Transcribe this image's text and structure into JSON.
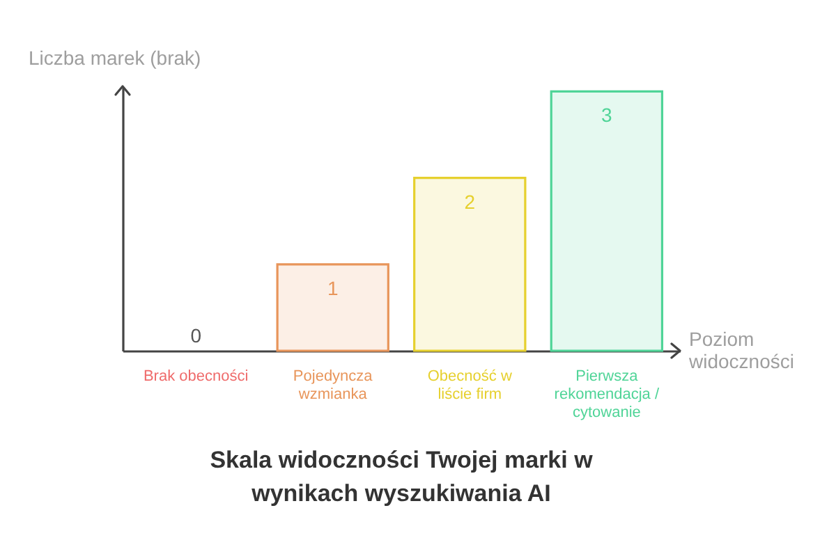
{
  "chart_data": {
    "type": "bar",
    "title": "Skala widoczności Twojej marki w wynikach wyszukiwania AI",
    "xlabel": "Poziom widoczności",
    "ylabel": "Liczba marek (brak)",
    "categories": [
      "Brak obecności",
      "Pojedyncza wzmianka",
      "Obecność w liście firm",
      "Pierwsza rekomendacja / cytowanie"
    ],
    "values": [
      0,
      1,
      2,
      3
    ],
    "colors": [
      "#ef6b6b",
      "#e8955a",
      "#e6d02e",
      "#4fd497"
    ],
    "data_labels": true
  }
}
